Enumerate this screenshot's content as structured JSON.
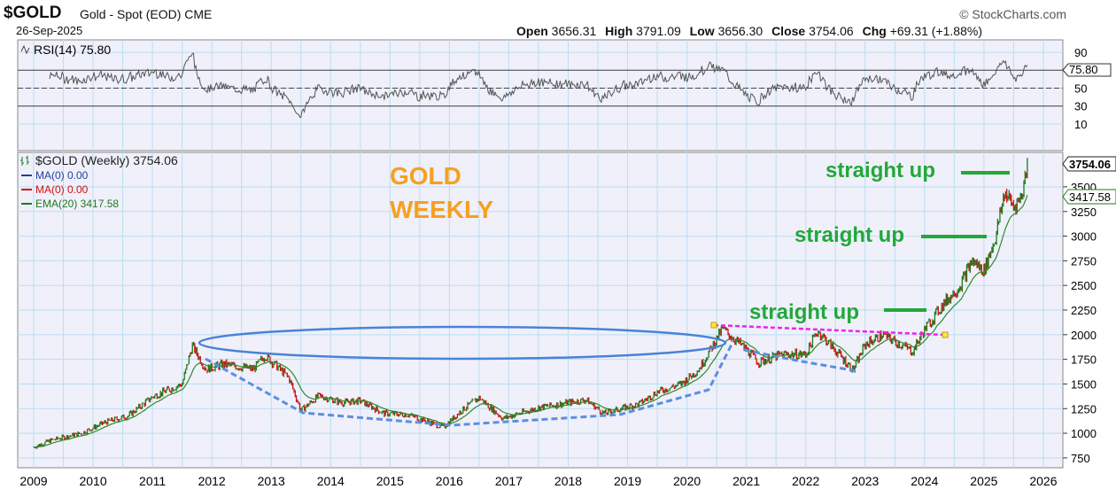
{
  "header": {
    "symbol": "$GOLD",
    "description": "Gold - Spot (EOD) CME",
    "brand": "© StockCharts.com",
    "date": "26-Sep-2025",
    "open_label": "Open",
    "open": "3656.31",
    "high_label": "High",
    "high": "3791.09",
    "low_label": "Low",
    "low": "3656.30",
    "close_label": "Close",
    "close": "3754.06",
    "chg_label": "Chg",
    "chg": "+69.31 (+1.88%)"
  },
  "rsi_panel": {
    "label": "RSI(14) 75.80",
    "current": "75.80",
    "ticks": [
      "90",
      "70",
      "50",
      "30",
      "10"
    ]
  },
  "price_panel": {
    "legend": [
      {
        "text": "$GOLD (Weekly) 3754.06",
        "color": "#222222"
      },
      {
        "text": "MA(0) 0.00",
        "color": "#1f3f9f"
      },
      {
        "text": "MA(0) 0.00",
        "color": "#d01010"
      },
      {
        "text": "EMA(20) 3417.58",
        "color": "#1e7a1e"
      }
    ],
    "last_price_tag": "3754.06",
    "ema_tag": "3417.58",
    "ticks": [
      "3500",
      "3250",
      "3000",
      "2750",
      "2500",
      "2250",
      "2000",
      "1750",
      "1500",
      "1250",
      "1000",
      "750"
    ]
  },
  "annotations": {
    "title_line1": "GOLD",
    "title_line2": "WEEKLY",
    "straight_up_1": "straight up",
    "straight_up_2": "straight up",
    "straight_up_3": "straight up"
  },
  "colors": {
    "panel_bg": "#f0f0fa",
    "grid": "#b9def2",
    "up": "#1b7a1b",
    "down": "#cc1111",
    "ema": "#2e8b2e",
    "annotation_green": "#22a83a",
    "title_orange": "#f5a020",
    "ellipse": "#4a82d8",
    "dashed_blue": "#5a8fe0",
    "dashed_magenta": "#ee22ee"
  },
  "chart_data": {
    "type": "line",
    "x_axis": [
      "2009",
      "2010",
      "2011",
      "2012",
      "2013",
      "2014",
      "2015",
      "2016",
      "2017",
      "2018",
      "2019",
      "2020",
      "2021",
      "2022",
      "2023",
      "2024",
      "2025",
      "2026"
    ],
    "price_series": {
      "name": "$GOLD (Weekly)",
      "points": [
        [
          "2009.0",
          860
        ],
        [
          "2009.3",
          930
        ],
        [
          "2009.8",
          1000
        ],
        [
          "2010.2",
          1110
        ],
        [
          "2010.6",
          1180
        ],
        [
          "2011.0",
          1370
        ],
        [
          "2011.5",
          1500
        ],
        [
          "2011.67",
          1890
        ],
        [
          "2011.9",
          1650
        ],
        [
          "2012.2",
          1700
        ],
        [
          "2012.7",
          1650
        ],
        [
          "2012.9",
          1790
        ],
        [
          "2013.3",
          1560
        ],
        [
          "2013.5",
          1230
        ],
        [
          "2013.8",
          1380
        ],
        [
          "2014.2",
          1310
        ],
        [
          "2014.5",
          1330
        ],
        [
          "2014.9",
          1200
        ],
        [
          "2015.3",
          1190
        ],
        [
          "2015.9",
          1060
        ],
        [
          "2016.2",
          1230
        ],
        [
          "2016.5",
          1360
        ],
        [
          "2016.9",
          1150
        ],
        [
          "2017.5",
          1260
        ],
        [
          "2017.9",
          1300
        ],
        [
          "2018.3",
          1340
        ],
        [
          "2018.6",
          1200
        ],
        [
          "2018.9",
          1250
        ],
        [
          "2019.2",
          1300
        ],
        [
          "2019.5",
          1420
        ],
        [
          "2019.9",
          1500
        ],
        [
          "2020.2",
          1650
        ],
        [
          "2020.6",
          2060
        ],
        [
          "2021.0",
          1850
        ],
        [
          "2021.2",
          1720
        ],
        [
          "2021.6",
          1800
        ],
        [
          "2022.0",
          1800
        ],
        [
          "2022.2",
          2040
        ],
        [
          "2022.8",
          1640
        ],
        [
          "2023.0",
          1900
        ],
        [
          "2023.3",
          2000
        ],
        [
          "2023.8",
          1830
        ],
        [
          "2024.0",
          2050
        ],
        [
          "2024.3",
          2300
        ],
        [
          "2024.6",
          2500
        ],
        [
          "2024.8",
          2750
        ],
        [
          "2025.0",
          2650
        ],
        [
          "2025.2",
          3000
        ],
        [
          "2025.35",
          3450
        ],
        [
          "2025.5",
          3300
        ],
        [
          "2025.63",
          3400
        ],
        [
          "2025.74",
          3754
        ]
      ]
    },
    "ema_series": {
      "name": "EMA(20) 3417.58",
      "last_value": 3417.58
    },
    "rsi_series": {
      "name": "RSI(14)",
      "last_value": 75.8,
      "levels": [
        70,
        50,
        30
      ]
    },
    "y_price_range": [
      650,
      3850
    ],
    "y_rsi_range": [
      0,
      100
    ]
  }
}
